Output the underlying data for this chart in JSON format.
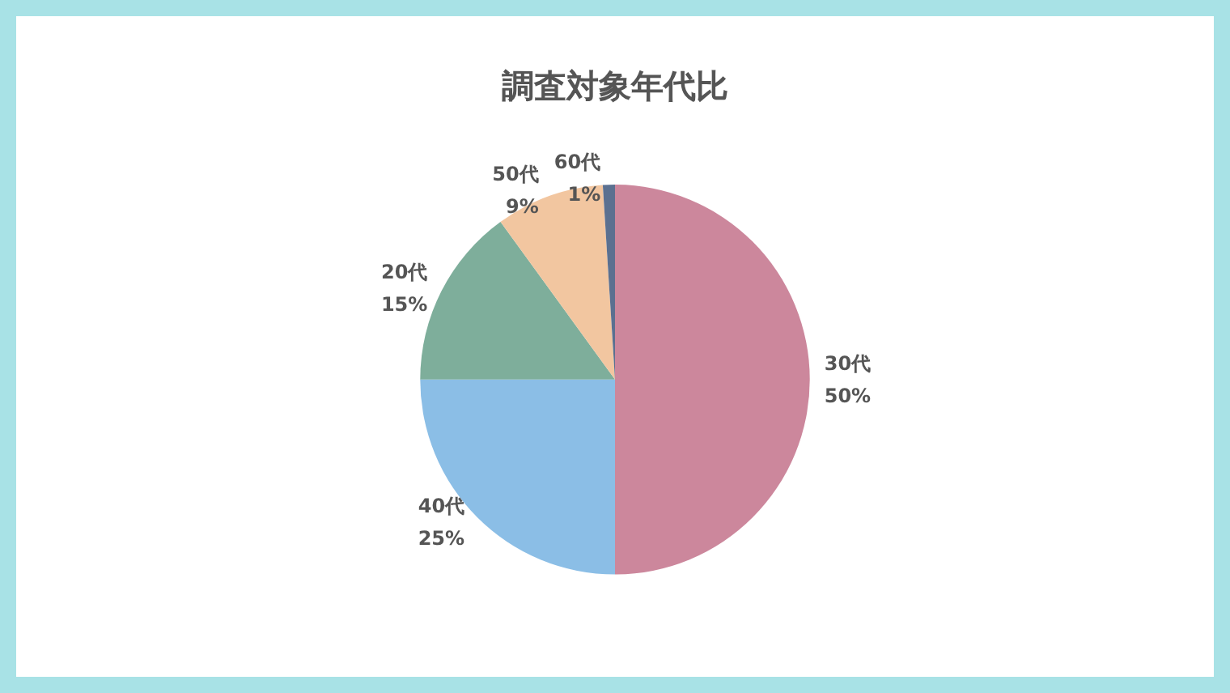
{
  "chart_data": {
    "type": "pie",
    "title": "調査対象年代比",
    "categories": [
      "30代",
      "40代",
      "20代",
      "50代",
      "60代"
    ],
    "values": [
      50,
      25,
      15,
      9,
      1
    ],
    "value_labels": [
      "50%",
      "25%",
      "15%",
      "9%",
      "1%"
    ],
    "colors": [
      "#cc879c",
      "#8bbee6",
      "#7eae9b",
      "#f2c6a0",
      "#5b7090"
    ],
    "legend": false
  }
}
